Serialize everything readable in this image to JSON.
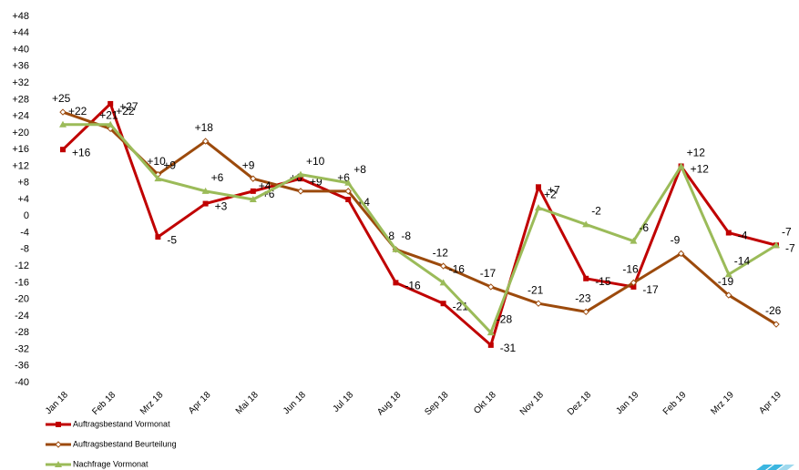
{
  "chart_data": {
    "type": "line",
    "categories": [
      "Jan 18",
      "Feb 18",
      "Mrz 18",
      "Apr 18",
      "Mai 18",
      "Jun 18",
      "Jul 18",
      "Aug 18",
      "Sep 18",
      "Okt 18",
      "Nov 18",
      "Dez 18",
      "Jan 19",
      "Feb 19",
      "Mrz 19",
      "Apr 19"
    ],
    "series": [
      {
        "name": "Auftragsbestand Vormonat",
        "color": "#c00000",
        "label_color": "#e0302a",
        "marker": "square",
        "values": [
          16,
          27,
          -5,
          3,
          6,
          9,
          4,
          -16,
          -21,
          -31,
          7,
          -15,
          -17,
          12,
          -4,
          -7
        ],
        "value_labels": [
          "+16",
          "+27",
          "-5",
          "+3",
          "+6",
          "+9",
          "+4",
          "-16",
          "-21",
          "-31",
          "+7",
          "-15",
          "-17",
          "+12",
          "-4",
          "-7"
        ]
      },
      {
        "name": "Auftragsbestand Beurteilung",
        "color": "#9c4a0c",
        "label_color": "#c0504d",
        "marker": "diamond",
        "values": [
          25,
          21,
          10,
          18,
          9,
          6,
          6,
          -8,
          -12,
          -17,
          -21,
          -23,
          -16,
          -9,
          -19,
          -26
        ],
        "value_labels": [
          "+25",
          "+21",
          "+10",
          "+18",
          "+9",
          "+6",
          "+6",
          "-8",
          "-12",
          "-17",
          "-21",
          "-23",
          "-16",
          "-9",
          "-19",
          "-26"
        ]
      },
      {
        "name": "Nachfrage Vormonat",
        "color": "#9bbb59",
        "label_color": "#000000",
        "marker": "triangle",
        "values": [
          22,
          22,
          9,
          6,
          4,
          10,
          8,
          -8,
          -16,
          -28,
          2,
          -2,
          -6,
          12,
          -14,
          -7
        ],
        "value_labels": [
          "+22",
          "+22",
          "+9",
          "+6",
          "+4",
          "+10",
          "+8",
          "-8",
          "-16",
          "-28",
          "+2",
          "-2",
          "-6",
          "+12",
          "-14",
          "-7"
        ]
      }
    ],
    "ylim": [
      -40,
      48
    ],
    "yticks": [
      -40,
      -36,
      -32,
      -28,
      -24,
      -20,
      -16,
      -12,
      -8,
      -4,
      0,
      {
        "value": 4,
        "label": "+4"
      },
      {
        "value": 8,
        "label": "+8"
      },
      {
        "value": 12,
        "label": "+12"
      },
      {
        "value": 16,
        "label": "+16"
      },
      {
        "value": 20,
        "label": "+20"
      },
      {
        "value": 24,
        "label": "+24"
      },
      {
        "value": 28,
        "label": "+28"
      },
      {
        "value": 32,
        "label": "+32"
      },
      {
        "value": 36,
        "label": "+36"
      },
      {
        "value": 40,
        "label": "+40"
      },
      {
        "value": 44,
        "label": "+44"
      },
      {
        "value": 48,
        "label": "+48"
      }
    ],
    "grid": false
  }
}
